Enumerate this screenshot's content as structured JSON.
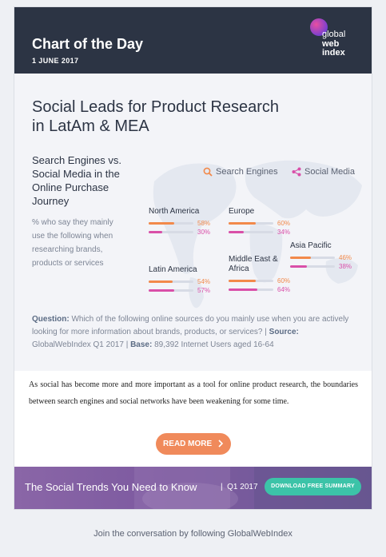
{
  "header": {
    "title": "Chart of the Day",
    "date": "1 JUNE 2017",
    "logo": {
      "line1": "global",
      "line2": "web",
      "line3": "index"
    }
  },
  "infographic": {
    "title": "Social Leads for Product Research in LatAm & MEA",
    "subhead": "Search Engines vs. Social Media in the Online Purchase Journey",
    "description": "% who say they mainly use the following when researching brands, products or services",
    "legend": {
      "search_engines": "Search Engines",
      "social_media": "Social Media"
    },
    "regions": [
      {
        "name": "North America",
        "search_engines": "58%",
        "social_media": "30%"
      },
      {
        "name": "Europe",
        "search_engines": "60%",
        "social_media": "34%"
      },
      {
        "name": "Asia Pacific",
        "search_engines": "46%",
        "social_media": "38%"
      },
      {
        "name": "Latin America",
        "search_engines": "54%",
        "social_media": "57%"
      },
      {
        "name": "Middle East & Africa",
        "search_engines": "60%",
        "social_media": "64%"
      }
    ],
    "question_label": "Question:",
    "question_text": "Which of the following online sources do you mainly use when you are actively looking for more information about brands, products, or services?",
    "source_label": "Source:",
    "source_text": "GlobalWebIndex Q1 2017",
    "base_label": "Base:",
    "base_text": "89,392 Internet Users aged 16-64"
  },
  "body_text": "As social has become more and more important as a tool for online product research, the boundaries between search engines and social networks have been weakening for some time.",
  "read_more": "READ MORE",
  "banner": {
    "title": "The Social Trends You Need to Know",
    "date": "Q1 2017",
    "button": "DOWNLOAD FREE SUMMARY"
  },
  "footer": "Join the conversation by following GlobalWebIndex",
  "colors": {
    "header_bg": "#2c3444",
    "search_engines": "#f2894a",
    "social_media": "#d94fa8",
    "read_more": "#f08a5b",
    "banner_button": "#3cc3a8"
  }
}
